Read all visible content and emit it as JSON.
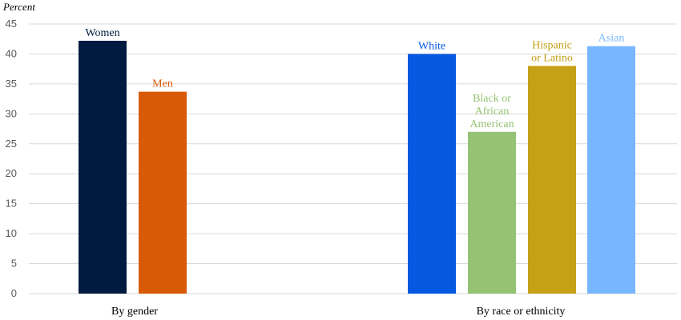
{
  "chart_data": {
    "type": "bar",
    "title": "",
    "ylabel": "Percent",
    "xlabel": "",
    "ylim": [
      0,
      45
    ],
    "yticks": [
      0,
      5,
      10,
      15,
      20,
      25,
      30,
      35,
      40,
      45
    ],
    "grid": true,
    "groups": [
      {
        "label": "By gender",
        "bars": [
          {
            "label": [
              "Women"
            ],
            "value": 42.2,
            "color": "#001a40",
            "label_color": "#001a40"
          },
          {
            "label": [
              "Men"
            ],
            "value": 33.7,
            "color": "#d95a06",
            "label_color": "#d95a06"
          }
        ]
      },
      {
        "label": "By race or ethnicity",
        "bars": [
          {
            "label": [
              "White"
            ],
            "value": 40.0,
            "color": "#0658e1",
            "label_color": "#0658e1"
          },
          {
            "label": [
              "Black or",
              "African",
              "American"
            ],
            "value": 27.0,
            "color": "#95c373",
            "label_color": "#95c373"
          },
          {
            "label": [
              "Hispanic",
              "or Latino"
            ],
            "value": 38.0,
            "color": "#c5a116",
            "label_color": "#c5a116"
          },
          {
            "label": [
              "Asian"
            ],
            "value": 41.3,
            "color": "#78b7ff",
            "label_color": "#78b7ff"
          }
        ]
      }
    ]
  }
}
